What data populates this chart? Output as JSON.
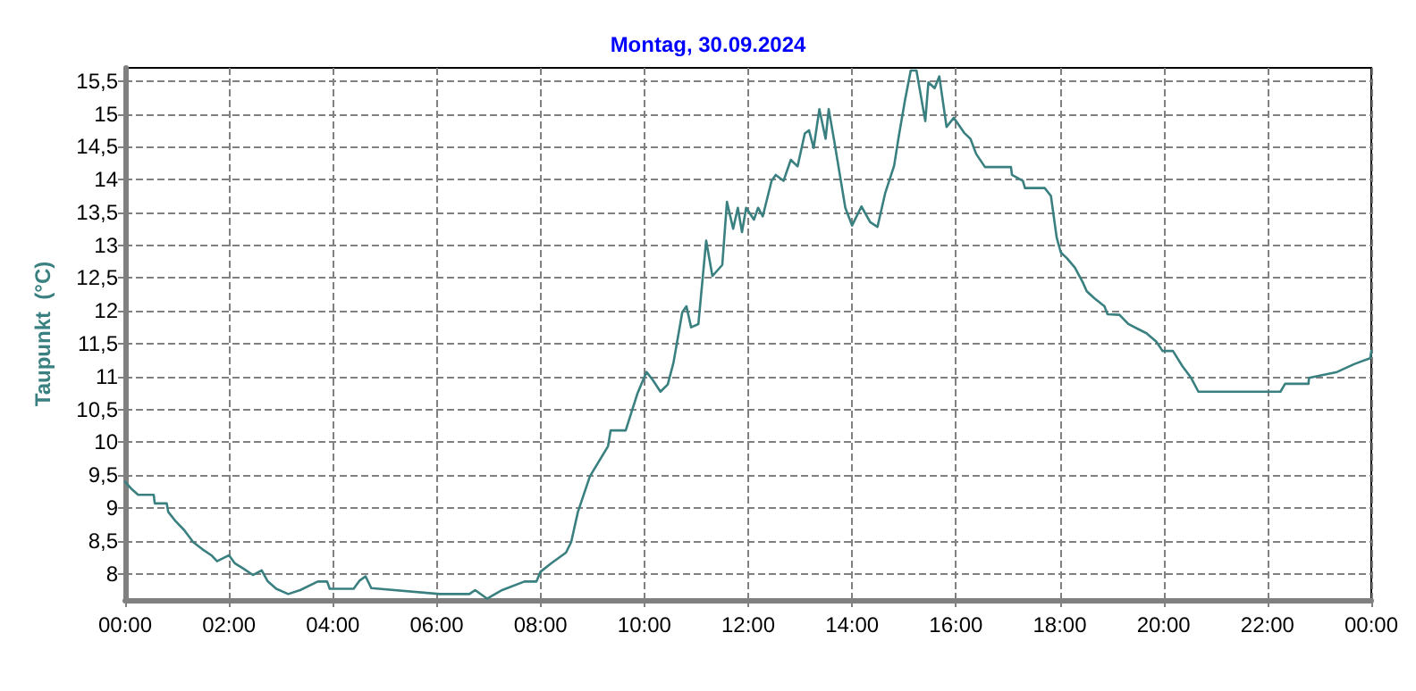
{
  "chart_data": {
    "type": "line",
    "title": "Montag, 30.09.2024",
    "ylabel": "Taupunkt  (°C)",
    "x": [
      0,
      0.11,
      0.25,
      0.55,
      0.57,
      0.8,
      0.83,
      0.97,
      1.14,
      1.31,
      1.49,
      1.66,
      1.77,
      2.0,
      2.11,
      2.29,
      2.46,
      2.63,
      2.74,
      2.91,
      3.14,
      3.37,
      3.71,
      3.89,
      3.94,
      4.4,
      4.51,
      4.63,
      4.74,
      6.06,
      6.63,
      6.74,
      6.97,
      7.26,
      7.69,
      7.92,
      8.0,
      8.21,
      8.49,
      8.59,
      8.72,
      8.95,
      9.3,
      9.35,
      9.64,
      9.87,
      10.04,
      10.16,
      10.31,
      10.45,
      10.56,
      10.73,
      10.81,
      10.9,
      11.04,
      11.19,
      11.31,
      11.5,
      11.59,
      11.71,
      11.8,
      11.88,
      11.96,
      12.11,
      12.19,
      12.28,
      12.45,
      12.53,
      12.68,
      12.82,
      12.95,
      13.09,
      13.17,
      13.26,
      13.37,
      13.49,
      13.55,
      13.66,
      13.87,
      14.0,
      14.18,
      14.35,
      14.49,
      14.64,
      14.81,
      14.9,
      15.02,
      15.13,
      15.24,
      15.41,
      15.47,
      15.59,
      15.68,
      15.82,
      15.96,
      16.16,
      16.28,
      16.39,
      16.56,
      17.06,
      17.08,
      17.29,
      17.33,
      17.71,
      17.83,
      17.94,
      18.02,
      18.14,
      18.29,
      18.44,
      18.52,
      18.67,
      18.86,
      18.92,
      19.15,
      19.32,
      19.67,
      19.86,
      19.98,
      20.18,
      20.36,
      20.53,
      20.67,
      22.25,
      22.34,
      22.79,
      22.8,
      23.34,
      23.67,
      23.98,
      24.0
    ],
    "series": [
      {
        "color": "#3a8080",
        "values": [
          9.4,
          9.3,
          9.2,
          9.2,
          9.07,
          9.07,
          8.94,
          8.8,
          8.66,
          8.48,
          8.37,
          8.28,
          8.19,
          8.28,
          8.16,
          8.07,
          7.98,
          8.05,
          7.89,
          7.77,
          7.69,
          7.75,
          7.88,
          7.88,
          7.77,
          7.77,
          7.89,
          7.96,
          7.78,
          7.69,
          7.69,
          7.75,
          7.62,
          7.75,
          7.88,
          7.88,
          8.03,
          8.16,
          8.32,
          8.48,
          8.94,
          9.48,
          9.94,
          10.18,
          10.18,
          10.75,
          11.07,
          10.95,
          10.77,
          10.88,
          11.21,
          11.98,
          12.07,
          11.75,
          11.8,
          13.07,
          12.53,
          12.7,
          13.66,
          13.25,
          13.57,
          13.2,
          13.57,
          13.39,
          13.57,
          13.44,
          13.98,
          14.07,
          13.98,
          14.3,
          14.2,
          14.7,
          14.75,
          14.48,
          15.07,
          14.62,
          15.07,
          14.57,
          13.57,
          13.3,
          13.59,
          13.35,
          13.28,
          13.8,
          14.21,
          14.66,
          15.21,
          15.66,
          15.66,
          14.89,
          15.48,
          15.39,
          15.57,
          14.8,
          14.94,
          14.71,
          14.62,
          14.39,
          14.19,
          14.19,
          14.07,
          13.98,
          13.87,
          13.87,
          13.75,
          13.12,
          12.89,
          12.8,
          12.66,
          12.44,
          12.3,
          12.19,
          12.07,
          11.95,
          11.94,
          11.8,
          11.66,
          11.53,
          11.39,
          11.39,
          11.16,
          10.98,
          10.77,
          10.77,
          10.89,
          10.89,
          10.98,
          11.07,
          11.19,
          11.28,
          11.39
        ]
      }
    ],
    "xlim": [
      0,
      24
    ],
    "xticks": [
      {
        "value": 0,
        "label": "00:00"
      },
      {
        "value": 2,
        "label": "02:00"
      },
      {
        "value": 4,
        "label": "04:00"
      },
      {
        "value": 6,
        "label": "06:00"
      },
      {
        "value": 8,
        "label": "08:00"
      },
      {
        "value": 10,
        "label": "10:00"
      },
      {
        "value": 12,
        "label": "12:00"
      },
      {
        "value": 14,
        "label": "14:00"
      },
      {
        "value": 16,
        "label": "16:00"
      },
      {
        "value": 18,
        "label": "18:00"
      },
      {
        "value": 20,
        "label": "20:00"
      },
      {
        "value": 22,
        "label": "22:00"
      },
      {
        "value": 24,
        "label": "00:00"
      }
    ],
    "ylim": [
      7.6,
      15.7
    ],
    "yticks": [
      8,
      {
        "value": 8.5,
        "label": "8,5"
      },
      9,
      {
        "value": 9.5,
        "label": "9,5"
      },
      10,
      {
        "value": 10.5,
        "label": "10,5"
      },
      11,
      {
        "value": 11.5,
        "label": "11,5"
      },
      12,
      {
        "value": 12.5,
        "label": "12,5"
      },
      13,
      {
        "value": 13.5,
        "label": "13,5"
      },
      14,
      {
        "value": 14.5,
        "label": "14,5"
      },
      15,
      {
        "value": 15.5,
        "label": "15,5"
      }
    ],
    "grid": true,
    "marker": "none",
    "line_style": "solid"
  }
}
